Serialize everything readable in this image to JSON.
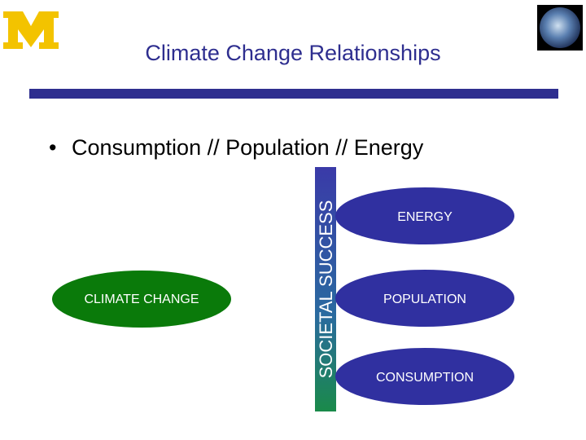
{
  "header": {
    "title": "Climate Change Relationships"
  },
  "bullet": "Consumption // Population // Energy",
  "bar_label": "SOCIETAL SUCCESS",
  "nodes": [
    {
      "label": "CLIMATE CHANGE"
    },
    {
      "label": "ENERGY"
    },
    {
      "label": "POPULATION"
    },
    {
      "label": "CONSUMPTION"
    }
  ]
}
